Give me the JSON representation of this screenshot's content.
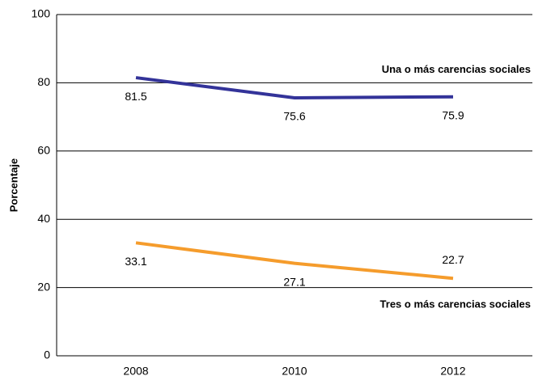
{
  "chart_data": {
    "type": "line",
    "y_label": "Porcentaje",
    "categories": [
      "2008",
      "2010",
      "2012"
    ],
    "series": [
      {
        "name": "Una o más carencias sociales",
        "color": "#333399",
        "values": [
          81.5,
          75.6,
          75.9
        ]
      },
      {
        "name": "Tres o más carencias sociales",
        "color": "#f59c2c",
        "values": [
          33.1,
          27.1,
          22.7
        ]
      }
    ],
    "ylim": [
      0,
      100
    ],
    "yticks": [
      0,
      20,
      40,
      60,
      80,
      100
    ],
    "grid": true
  }
}
